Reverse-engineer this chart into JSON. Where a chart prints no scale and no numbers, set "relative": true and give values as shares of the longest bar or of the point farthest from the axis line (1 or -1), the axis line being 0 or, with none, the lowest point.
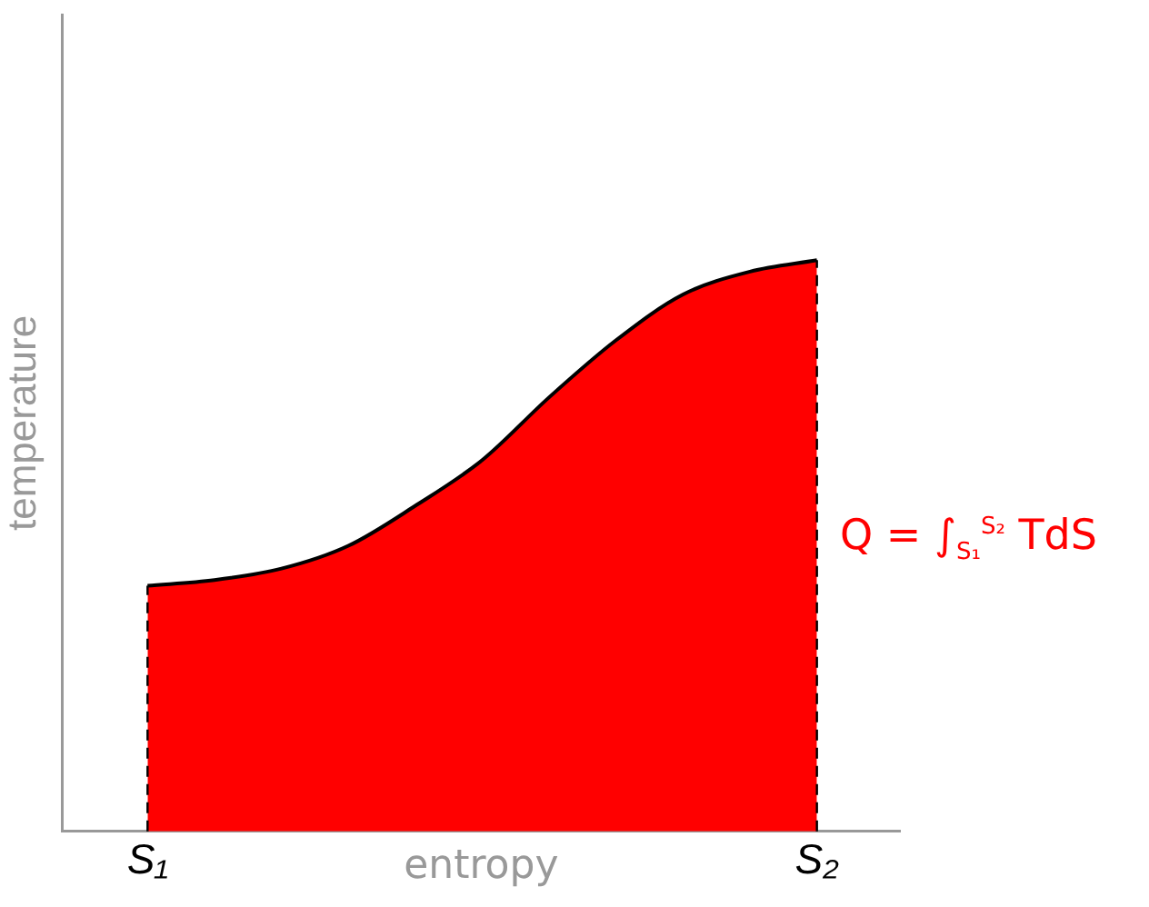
{
  "chart_data": {
    "type": "area",
    "relative": true,
    "xlabel": "entropy",
    "ylabel": "temperature",
    "categories": [
      "S₁",
      null,
      null,
      null,
      null,
      null,
      null,
      null,
      null,
      null,
      "S₂"
    ],
    "series": [
      {
        "color": "#ff0000",
        "values": [
          0.43,
          0.44,
          0.46,
          0.5,
          0.57,
          0.65,
          0.76,
          0.86,
          0.94,
          0.98,
          1
        ]
      }
    ],
    "ref_lines": [
      {
        "axis": "x",
        "value": "S₁",
        "color": "#000000",
        "line_style": "dashed"
      },
      {
        "axis": "x",
        "value": "S₂",
        "color": "#000000",
        "line_style": "dashed"
      }
    ],
    "annotations": [
      "Q = ∫$_{S₁}$$^{S₂}$ TdS"
    ],
    "grid": false,
    "legend": false
  }
}
